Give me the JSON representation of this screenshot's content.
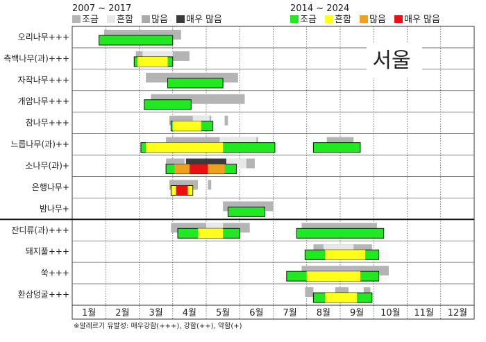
{
  "chart_data": {
    "type": "bar",
    "title": "",
    "region_label": "서울",
    "xlabel": "",
    "ylabel": "",
    "x_axis": {
      "unit": "month",
      "range": [
        1,
        13
      ],
      "tick_labels": [
        "1월",
        "2월",
        "3월",
        "4월",
        "5월",
        "6월",
        "7월",
        "8월",
        "9월",
        "10월",
        "11월",
        "12월"
      ]
    },
    "grid": true,
    "footnote": "※알레르기 유발성: 매우강함(+++), 강함(++), 약함(+)",
    "legend_old": {
      "title": "2007 ~ 2017",
      "items": [
        {
          "label": "조금",
          "color": "#b5b5b5"
        },
        {
          "label": "흔함",
          "color": "#e8e8e8"
        },
        {
          "label": "많음",
          "color": "#aaaaaa"
        },
        {
          "label": "매우 많음",
          "color": "#3a3a3a"
        }
      ]
    },
    "legend_new": {
      "title": "2014 ~ 2024",
      "items": [
        {
          "label": "조금",
          "color": "#22e822"
        },
        {
          "label": "흔함",
          "color": "#ffff1a"
        },
        {
          "label": "많음",
          "color": "#f0a020"
        },
        {
          "label": "매우 많음",
          "color": "#e81010"
        }
      ]
    },
    "rows": [
      {
        "label": "오리나무+++",
        "old": [
          [
            1.95,
            4.25,
            "low"
          ]
        ],
        "new": [
          [
            1.8,
            4.0,
            "low"
          ]
        ]
      },
      {
        "label": "측백나무(과)+++",
        "old": [
          [
            2.9,
            4.5,
            "low"
          ],
          [
            3.1,
            4.0,
            "common"
          ]
        ],
        "new": [
          [
            2.85,
            4.0,
            "low"
          ],
          [
            2.95,
            3.85,
            "common"
          ]
        ]
      },
      {
        "label": "자작나무+++",
        "old": [
          [
            3.2,
            5.95,
            "low"
          ]
        ],
        "new": [
          [
            3.85,
            5.5,
            "low"
          ]
        ]
      },
      {
        "label": "개암나무+++",
        "old": [
          [
            3.35,
            6.15,
            "low"
          ]
        ],
        "new": [
          [
            3.15,
            4.55,
            "low"
          ]
        ]
      },
      {
        "label": "참나무+++",
        "old": [
          [
            3.9,
            5.15,
            "low"
          ],
          [
            4.6,
            5.1,
            "common"
          ],
          [
            5.55,
            5.65,
            "low"
          ]
        ],
        "new": [
          [
            3.95,
            5.2,
            "low"
          ],
          [
            4.0,
            4.85,
            "common"
          ]
        ]
      },
      {
        "label": "느릅나무(과)++",
        "old": [
          [
            3.8,
            6.55,
            "low"
          ],
          [
            5.4,
            6.5,
            "common"
          ],
          [
            8.6,
            9.4,
            "low"
          ]
        ],
        "new": [
          [
            3.05,
            7.05,
            "low"
          ],
          [
            3.2,
            5.5,
            "common"
          ],
          [
            8.2,
            9.6,
            "low"
          ]
        ]
      },
      {
        "label": "소나무(과)+",
        "old": [
          [
            3.8,
            6.45,
            "low"
          ],
          [
            4.35,
            6.2,
            "common"
          ],
          [
            4.4,
            5.6,
            "very_high"
          ]
        ],
        "new": [
          [
            3.8,
            5.9,
            "low"
          ],
          [
            4.05,
            5.55,
            "high"
          ],
          [
            4.5,
            5.05,
            "very_high"
          ]
        ]
      },
      {
        "label": "은행나무+",
        "old": [
          [
            3.9,
            4.75,
            "low"
          ],
          [
            5.05,
            5.15,
            "low"
          ]
        ],
        "new": [
          [
            3.95,
            4.6,
            "common"
          ],
          [
            4.1,
            4.45,
            "very_high"
          ]
        ]
      },
      {
        "label": "밤나무+",
        "old": [
          [
            5.5,
            7.0,
            "low"
          ]
        ],
        "new": [
          [
            5.65,
            6.75,
            "low"
          ]
        ]
      },
      {
        "label": "잔디류(과)+++",
        "old": [
          [
            3.95,
            6.3,
            "low"
          ],
          [
            5.0,
            5.5,
            "common"
          ],
          [
            7.85,
            10.1,
            "low"
          ]
        ],
        "new": [
          [
            4.15,
            6.0,
            "low"
          ],
          [
            4.75,
            5.5,
            "common"
          ],
          [
            7.7,
            10.3,
            "low"
          ]
        ]
      },
      {
        "label": "돼지풀+++",
        "old": [
          [
            8.2,
            9.95,
            "low"
          ],
          [
            8.5,
            9.4,
            "common"
          ]
        ],
        "new": [
          [
            7.95,
            10.15,
            "low"
          ],
          [
            8.55,
            9.75,
            "common"
          ]
        ]
      },
      {
        "label": "쑥+++",
        "old": [
          [
            7.85,
            10.45,
            "low"
          ]
        ],
        "new": [
          [
            7.4,
            10.15,
            "low"
          ],
          [
            8.0,
            9.6,
            "common"
          ]
        ]
      },
      {
        "label": "환삼덩굴+++",
        "old": [
          [
            7.95,
            8.2,
            "low"
          ],
          [
            8.85,
            9.25,
            "low"
          ],
          [
            9.7,
            9.9,
            "low"
          ]
        ],
        "new": [
          [
            8.2,
            9.95,
            "low"
          ],
          [
            8.55,
            9.5,
            "common"
          ]
        ]
      }
    ]
  }
}
